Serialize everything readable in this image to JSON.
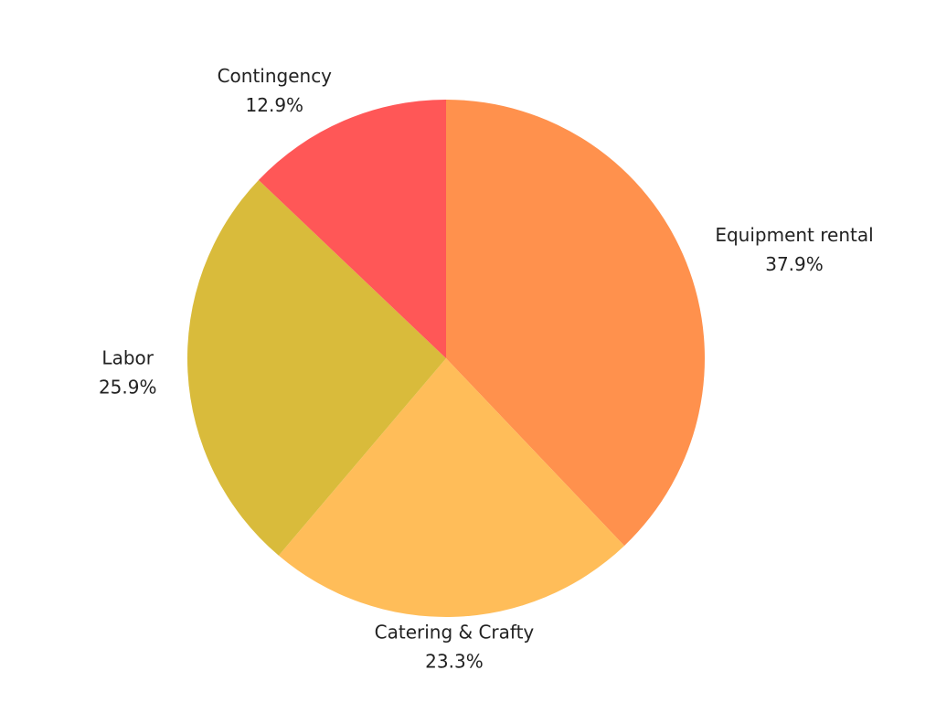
{
  "chart_data": {
    "type": "pie",
    "categories": [
      "Equipment rental",
      "Catering & Crafty",
      "Labor",
      "Contingency"
    ],
    "values": [
      37.9,
      23.3,
      25.9,
      12.9
    ],
    "value_labels": [
      "37.9%",
      "23.3%",
      "25.9%",
      "12.9%"
    ],
    "colors": [
      "#ff914d",
      "#ffbd59",
      "#d9bb3b",
      "#ff5757"
    ]
  }
}
